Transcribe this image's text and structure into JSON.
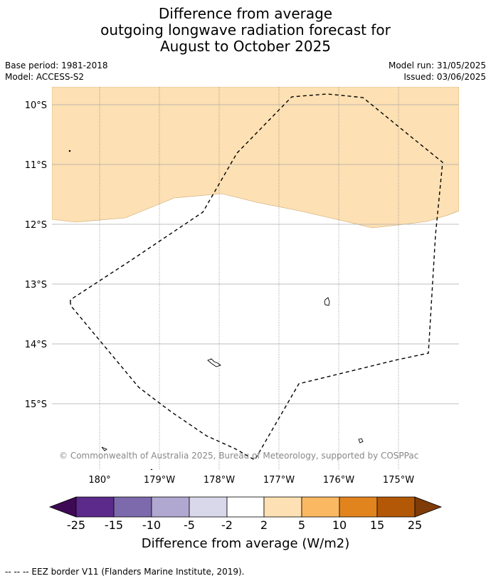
{
  "header": {
    "title_line1": "Difference from average",
    "title_line2": "outgoing longwave radiation forecast for",
    "title_line3": "August to October 2025",
    "base_period": "Base period: 1981-2018",
    "model": "Model: ACCESS-S2",
    "model_run": "Model run: 31/05/2025",
    "issued": "Issued: 03/06/2025"
  },
  "map": {
    "lat_labels": [
      "10°S",
      "11°S",
      "12°S",
      "13°S",
      "14°S",
      "15°S"
    ],
    "lon_labels": [
      "180°",
      "179°W",
      "178°W",
      "177°W",
      "176°W",
      "175°W"
    ],
    "anomaly_fill_color": "#fde0b3",
    "copyright": "© Commonwealth of Australia 2025, Bureau of Meteorology, supported by COSPPac"
  },
  "colorbar": {
    "ticks": [
      "-25",
      "-15",
      "-10",
      "-5",
      "-2",
      "2",
      "5",
      "10",
      "15",
      "25"
    ],
    "colors": [
      "#3f0a55",
      "#5b2a8a",
      "#7d6aac",
      "#b1a8d2",
      "#d8d8ea",
      "#ffffff",
      "#fde0b3",
      "#fbb862",
      "#e2841d",
      "#b35806",
      "#7f3b08"
    ],
    "label": "Difference from average (W/m2)"
  },
  "footnote": "--  --  -- EEZ border V11 (Flanders Marine Institute, 2019)."
}
